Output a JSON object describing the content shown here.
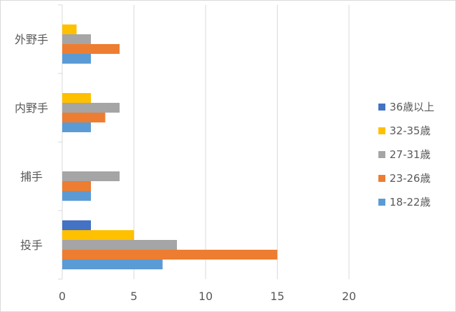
{
  "chart_data": {
    "type": "bar",
    "orientation": "horizontal",
    "title": "",
    "xlabel": "",
    "ylabel": "",
    "categories": [
      "外野手",
      "内野手",
      "捕手",
      "投手"
    ],
    "series": [
      {
        "name": "36歳以上",
        "color": "#4472c4",
        "values": [
          0,
          0,
          0,
          2
        ]
      },
      {
        "name": "32-35歳",
        "color": "#ffc000",
        "values": [
          1,
          2,
          0,
          5
        ]
      },
      {
        "name": "27-31歳",
        "color": "#a5a5a5",
        "values": [
          2,
          4,
          4,
          8
        ]
      },
      {
        "name": "23-26歳",
        "color": "#ed7d31",
        "values": [
          4,
          3,
          2,
          15
        ]
      },
      {
        "name": "18-22歳",
        "color": "#5b9bd5",
        "values": [
          2,
          2,
          2,
          7
        ]
      }
    ],
    "xlim": [
      0,
      20
    ],
    "xticks": [
      0,
      5,
      10,
      15,
      20
    ],
    "grid": true,
    "legend_position": "right"
  }
}
